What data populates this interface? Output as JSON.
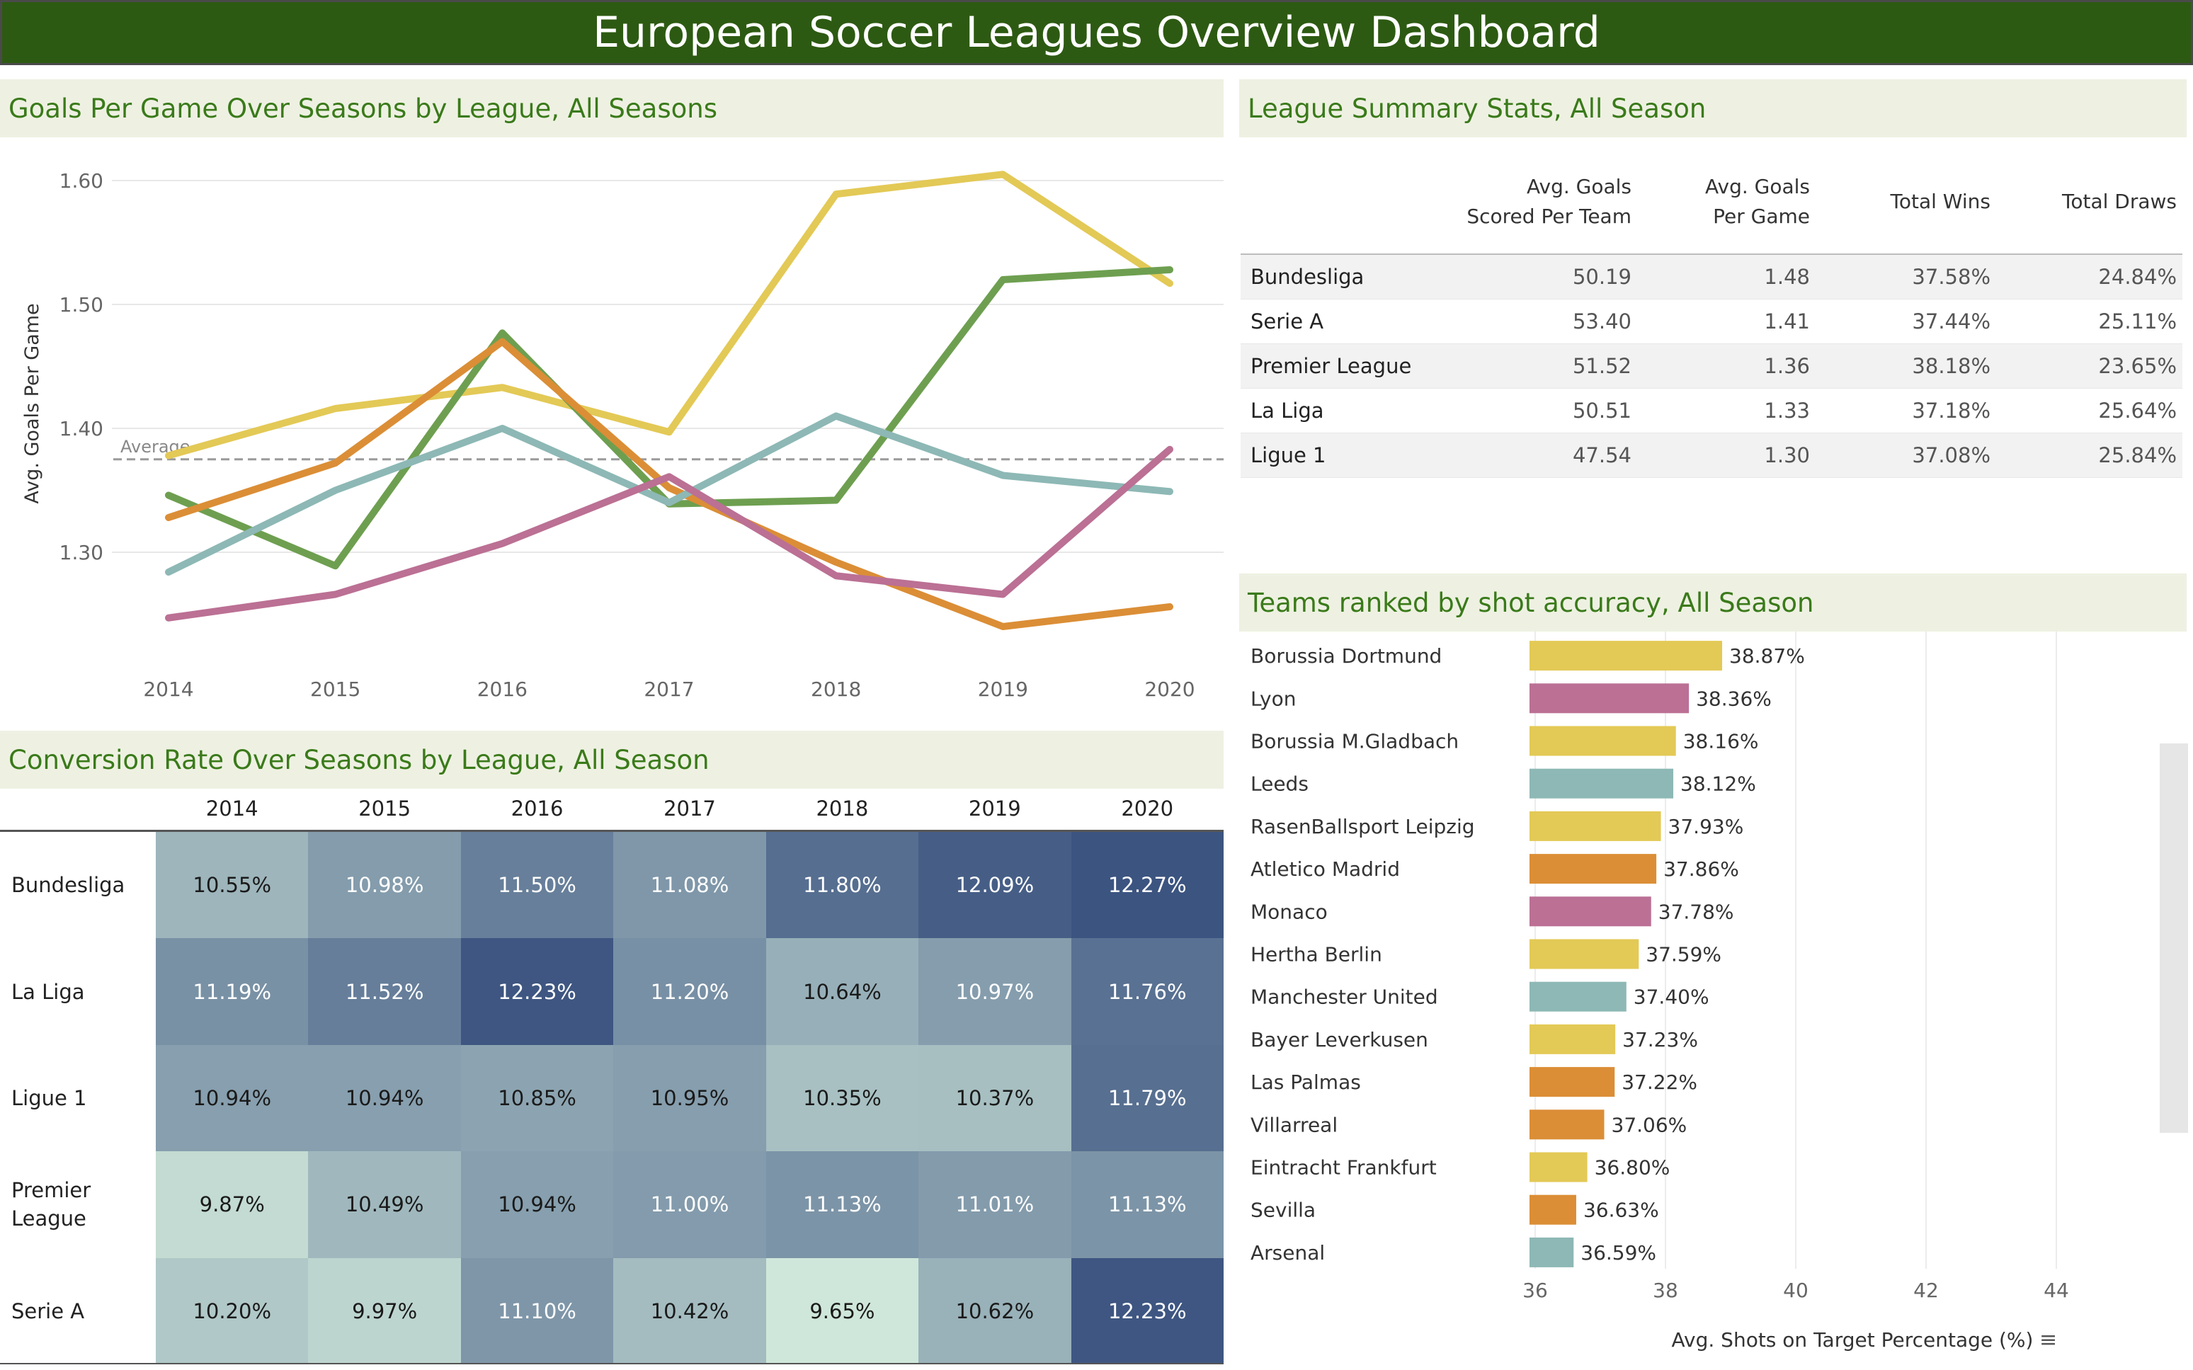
{
  "title": "European Soccer Leagues Overview Dashboard",
  "panels": {
    "line": "Goals Per Game Over Seasons by League, All Seasons",
    "summary": "League Summary Stats, All Season",
    "heatmap": "Conversion Rate Over Seasons by League, All Season",
    "bars": "Teams ranked by shot accuracy, All Season"
  },
  "summary_table": {
    "headers": {
      "avg_goals_team_1": "Avg. Goals",
      "avg_goals_team_2": "Scored Per Team",
      "avg_goals_game_1": "Avg. Goals",
      "avg_goals_game_2": "Per Game",
      "wins": "Total Wins",
      "draws": "Total Draws"
    },
    "rows": [
      {
        "league": "Bundesliga",
        "team": "50.19",
        "game": "1.48",
        "wins": "37.58%",
        "draws": "24.84%"
      },
      {
        "league": "Serie A",
        "team": "53.40",
        "game": "1.41",
        "wins": "37.44%",
        "draws": "25.11%"
      },
      {
        "league": "Premier League",
        "team": "51.52",
        "game": "1.36",
        "wins": "38.18%",
        "draws": "23.65%"
      },
      {
        "league": "La Liga",
        "team": "50.51",
        "game": "1.33",
        "wins": "37.18%",
        "draws": "25.64%"
      },
      {
        "league": "Ligue 1",
        "team": "47.54",
        "game": "1.30",
        "wins": "37.08%",
        "draws": "25.84%"
      }
    ]
  },
  "colors": {
    "yellow": "#e3c956",
    "green": "#6e9f50",
    "orange": "#db8e36",
    "teal": "#8db8b5",
    "pink": "#bb7094",
    "title_bg": "#2d5a12",
    "panel_head": "#eef1e2"
  },
  "chart_data": [
    {
      "type": "line",
      "title": "Goals Per Game Over Seasons by League, All Seasons",
      "ylabel": "Avg. Goals Per Game",
      "x": [
        2014,
        2015,
        2016,
        2017,
        2018,
        2019,
        2020
      ],
      "x_tick_labels": [
        "2014",
        "2015",
        "2016",
        "2017",
        "2018",
        "2019",
        "2020"
      ],
      "ylim": [
        1.22,
        1.62
      ],
      "y_ticks": [
        1.3,
        1.4,
        1.5,
        1.6
      ],
      "y_tick_labels": [
        "1.30",
        "1.40",
        "1.50",
        "1.60"
      ],
      "reference_line": {
        "label": "Average",
        "value": 1.375
      },
      "series": [
        {
          "color": "#e3c956",
          "values": [
            1.378,
            1.416,
            1.433,
            1.397,
            1.589,
            1.605,
            1.517
          ]
        },
        {
          "color": "#6e9f50",
          "values": [
            1.346,
            1.289,
            1.477,
            1.339,
            1.342,
            1.52,
            1.528
          ]
        },
        {
          "color": "#db8e36",
          "values": [
            1.328,
            1.372,
            1.47,
            1.352,
            1.292,
            1.24,
            1.256
          ]
        },
        {
          "color": "#8db8b5",
          "values": [
            1.284,
            1.35,
            1.4,
            1.34,
            1.41,
            1.362,
            1.349
          ]
        },
        {
          "color": "#bb7094",
          "values": [
            1.247,
            1.266,
            1.307,
            1.361,
            1.281,
            1.266,
            1.383
          ]
        }
      ]
    },
    {
      "type": "heatmap",
      "title": "Conversion Rate Over Seasons by League, All Season",
      "columns": [
        "2014",
        "2015",
        "2016",
        "2017",
        "2018",
        "2019",
        "2020"
      ],
      "rows": [
        "Bundesliga",
        "La Liga",
        "Ligue 1",
        "Premier League",
        "Serie A"
      ],
      "values": [
        [
          10.55,
          10.98,
          11.5,
          11.08,
          11.8,
          12.09,
          12.27
        ],
        [
          11.19,
          11.52,
          12.23,
          11.2,
          10.64,
          10.97,
          11.76
        ],
        [
          10.94,
          10.94,
          10.85,
          10.95,
          10.35,
          10.37,
          11.79
        ],
        [
          9.87,
          10.49,
          10.94,
          11.0,
          11.13,
          11.01,
          11.13
        ],
        [
          10.2,
          9.97,
          11.1,
          10.42,
          9.65,
          10.62,
          12.23
        ]
      ],
      "labels": [
        [
          "10.55%",
          "10.98%",
          "11.50%",
          "11.08%",
          "11.80%",
          "12.09%",
          "12.27%"
        ],
        [
          "11.19%",
          "11.52%",
          "12.23%",
          "11.20%",
          "10.64%",
          "10.97%",
          "11.76%"
        ],
        [
          "10.94%",
          "10.94%",
          "10.85%",
          "10.95%",
          "10.35%",
          "10.37%",
          "11.79%"
        ],
        [
          "9.87%",
          "10.49%",
          "10.94%",
          "11.00%",
          "11.13%",
          "11.01%",
          "11.13%"
        ],
        [
          "10.20%",
          "9.97%",
          "11.10%",
          "10.42%",
          "9.65%",
          "10.62%",
          "12.23%"
        ]
      ],
      "color_range": [
        "#cfe7da",
        "#3c5480"
      ]
    },
    {
      "type": "bar",
      "orientation": "horizontal",
      "title": "Teams ranked by shot accuracy, All Season",
      "xlabel": "Avg. Shots on Target Percentage (%)",
      "xlim": [
        36,
        45
      ],
      "x_ticks": [
        "36",
        "38",
        "40",
        "42",
        "44"
      ],
      "categories": [
        "Borussia Dortmund",
        "Lyon",
        "Borussia M.Gladbach",
        "Leeds",
        "RasenBallsport Leipzig",
        "Atletico Madrid",
        "Monaco",
        "Hertha Berlin",
        "Manchester United",
        "Bayer Leverkusen",
        "Las Palmas",
        "Villarreal",
        "Eintracht Frankfurt",
        "Sevilla",
        "Arsenal"
      ],
      "values": [
        38.87,
        38.36,
        38.16,
        38.12,
        37.93,
        37.86,
        37.78,
        37.59,
        37.4,
        37.23,
        37.22,
        37.06,
        36.8,
        36.63,
        36.59
      ],
      "value_labels": [
        "38.87%",
        "38.36%",
        "38.16%",
        "38.12%",
        "37.93%",
        "37.86%",
        "37.78%",
        "37.59%",
        "37.40%",
        "37.23%",
        "37.22%",
        "37.06%",
        "36.80%",
        "36.63%",
        "36.59%"
      ],
      "bar_colors": [
        "#e3c956",
        "#bb7094",
        "#e3c956",
        "#8db8b5",
        "#e3c956",
        "#db8e36",
        "#bb7094",
        "#e3c956",
        "#8db8b5",
        "#e3c956",
        "#db8e36",
        "#db8e36",
        "#e3c956",
        "#db8e36",
        "#8db8b5"
      ]
    }
  ]
}
